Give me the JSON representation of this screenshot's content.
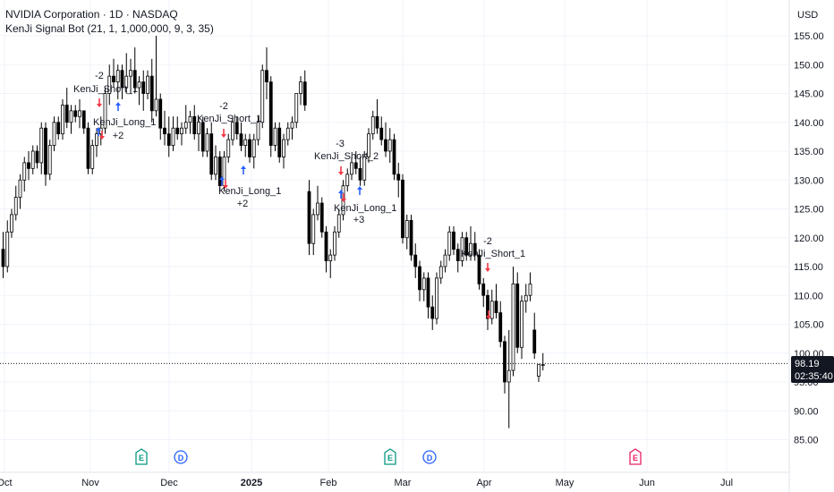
{
  "header": {
    "symbol_line": "NVIDIA Corporation · 1D · NASDAQ",
    "indicator_line": "KenJi Signal Bot (21, 1, 1,000,000, 9, 3, 35)"
  },
  "currency_label": "USD",
  "colors": {
    "candle": "#000000",
    "buy_arrow": "#2962ff",
    "sell_arrow": "#f23645",
    "grid": "#f0f3fa",
    "axis_text": "#131722",
    "earnings_badge": "#089981",
    "dividend_badge": "#2962ff",
    "future_earnings_badge": "#e91e63"
  },
  "current_price": {
    "value": "98.19",
    "countdown": "02:35:40"
  },
  "chart_data": {
    "type": "candlestick",
    "y_axis": {
      "ticks": [
        "155.00",
        "150.00",
        "145.00",
        "140.00",
        "135.00",
        "130.00",
        "125.00",
        "120.00",
        "115.00",
        "110.00",
        "105.00",
        "100.00",
        "95.00",
        "90.00",
        "85.00"
      ],
      "range": [
        82,
        158
      ]
    },
    "x_axis": {
      "labels": [
        "Oct",
        "Nov",
        "Dec",
        "2025",
        "Feb",
        "Mar",
        "Apr",
        "May",
        "Jun",
        "Jul"
      ],
      "bold_labels": [
        "2025"
      ]
    },
    "candles": [
      {
        "o": 118,
        "h": 121,
        "l": 113,
        "c": 115
      },
      {
        "o": 115,
        "h": 123,
        "l": 114,
        "c": 121
      },
      {
        "o": 121,
        "h": 125,
        "l": 120,
        "c": 124
      },
      {
        "o": 124,
        "h": 129,
        "l": 123,
        "c": 127
      },
      {
        "o": 127,
        "h": 131,
        "l": 125,
        "c": 130
      },
      {
        "o": 130,
        "h": 134,
        "l": 128,
        "c": 133
      },
      {
        "o": 133,
        "h": 135,
        "l": 130,
        "c": 132
      },
      {
        "o": 132,
        "h": 136,
        "l": 131,
        "c": 135
      },
      {
        "o": 135,
        "h": 136,
        "l": 132,
        "c": 133
      },
      {
        "o": 133,
        "h": 140,
        "l": 131,
        "c": 139
      },
      {
        "o": 139,
        "h": 140,
        "l": 129,
        "c": 131
      },
      {
        "o": 131,
        "h": 137,
        "l": 130,
        "c": 136
      },
      {
        "o": 136,
        "h": 141,
        "l": 135,
        "c": 140
      },
      {
        "o": 140,
        "h": 141,
        "l": 137,
        "c": 138
      },
      {
        "o": 138,
        "h": 144,
        "l": 137,
        "c": 143
      },
      {
        "o": 143,
        "h": 146,
        "l": 139,
        "c": 140
      },
      {
        "o": 140,
        "h": 143,
        "l": 138,
        "c": 142
      },
      {
        "o": 142,
        "h": 143,
        "l": 140,
        "c": 141
      },
      {
        "o": 141,
        "h": 144,
        "l": 139,
        "c": 142
      },
      {
        "o": 142,
        "h": 142,
        "l": 138,
        "c": 139
      },
      {
        "o": 139,
        "h": 140,
        "l": 131,
        "c": 132
      },
      {
        "o": 132,
        "h": 137,
        "l": 131,
        "c": 136
      },
      {
        "o": 136,
        "h": 139,
        "l": 134,
        "c": 138
      },
      {
        "o": 138,
        "h": 141,
        "l": 136,
        "c": 139
      },
      {
        "o": 139,
        "h": 146,
        "l": 138,
        "c": 145
      },
      {
        "o": 145,
        "h": 150,
        "l": 143,
        "c": 148
      },
      {
        "o": 148,
        "h": 151,
        "l": 146,
        "c": 147
      },
      {
        "o": 147,
        "h": 150,
        "l": 144,
        "c": 149
      },
      {
        "o": 149,
        "h": 150,
        "l": 144,
        "c": 146
      },
      {
        "o": 146,
        "h": 152,
        "l": 145,
        "c": 148
      },
      {
        "o": 148,
        "h": 151,
        "l": 145,
        "c": 149
      },
      {
        "o": 149,
        "h": 153,
        "l": 145,
        "c": 146
      },
      {
        "o": 146,
        "h": 148,
        "l": 143,
        "c": 147
      },
      {
        "o": 147,
        "h": 149,
        "l": 142,
        "c": 145
      },
      {
        "o": 145,
        "h": 149,
        "l": 144,
        "c": 148
      },
      {
        "o": 148,
        "h": 151,
        "l": 140,
        "c": 142
      },
      {
        "o": 142,
        "h": 155,
        "l": 141,
        "c": 144
      },
      {
        "o": 144,
        "h": 145,
        "l": 137,
        "c": 139
      },
      {
        "o": 139,
        "h": 142,
        "l": 136,
        "c": 138
      },
      {
        "o": 138,
        "h": 141,
        "l": 134,
        "c": 136
      },
      {
        "o": 136,
        "h": 141,
        "l": 135,
        "c": 139
      },
      {
        "o": 139,
        "h": 141,
        "l": 137,
        "c": 138
      },
      {
        "o": 138,
        "h": 140,
        "l": 136,
        "c": 139
      },
      {
        "o": 139,
        "h": 143,
        "l": 138,
        "c": 140
      },
      {
        "o": 140,
        "h": 142,
        "l": 138,
        "c": 141
      },
      {
        "o": 141,
        "h": 143,
        "l": 137,
        "c": 138
      },
      {
        "o": 138,
        "h": 141,
        "l": 135,
        "c": 140
      },
      {
        "o": 140,
        "h": 141,
        "l": 134,
        "c": 135
      },
      {
        "o": 135,
        "h": 139,
        "l": 134,
        "c": 138
      },
      {
        "o": 138,
        "h": 140,
        "l": 130,
        "c": 131
      },
      {
        "o": 131,
        "h": 136,
        "l": 130,
        "c": 134
      },
      {
        "o": 134,
        "h": 135,
        "l": 128,
        "c": 129
      },
      {
        "o": 129,
        "h": 135,
        "l": 128,
        "c": 134
      },
      {
        "o": 134,
        "h": 138,
        "l": 133,
        "c": 137
      },
      {
        "o": 137,
        "h": 141,
        "l": 136,
        "c": 140
      },
      {
        "o": 140,
        "h": 141,
        "l": 137,
        "c": 138
      },
      {
        "o": 138,
        "h": 140,
        "l": 135,
        "c": 136
      },
      {
        "o": 136,
        "h": 138,
        "l": 134,
        "c": 137
      },
      {
        "o": 137,
        "h": 138,
        "l": 133,
        "c": 134
      },
      {
        "o": 134,
        "h": 138,
        "l": 132,
        "c": 137
      },
      {
        "o": 137,
        "h": 141,
        "l": 136,
        "c": 140
      },
      {
        "o": 140,
        "h": 150,
        "l": 139,
        "c": 149
      },
      {
        "o": 149,
        "h": 153,
        "l": 144,
        "c": 147
      },
      {
        "o": 147,
        "h": 148,
        "l": 134,
        "c": 136
      },
      {
        "o": 136,
        "h": 140,
        "l": 135,
        "c": 139
      },
      {
        "o": 139,
        "h": 140,
        "l": 133,
        "c": 134
      },
      {
        "o": 134,
        "h": 138,
        "l": 132,
        "c": 137
      },
      {
        "o": 137,
        "h": 140,
        "l": 136,
        "c": 139
      },
      {
        "o": 139,
        "h": 141,
        "l": 137,
        "c": 140
      },
      {
        "o": 140,
        "h": 145,
        "l": 139,
        "c": 145
      },
      {
        "o": 145,
        "h": 148,
        "l": 143,
        "c": 147
      },
      {
        "o": 147,
        "h": 149,
        "l": 142,
        "c": 143
      },
      {
        "o": 128,
        "h": 130,
        "l": 117,
        "c": 119
      },
      {
        "o": 119,
        "h": 125,
        "l": 117,
        "c": 124
      },
      {
        "o": 124,
        "h": 129,
        "l": 123,
        "c": 126
      },
      {
        "o": 126,
        "h": 127,
        "l": 120,
        "c": 121
      },
      {
        "o": 121,
        "h": 122,
        "l": 114,
        "c": 116
      },
      {
        "o": 116,
        "h": 118,
        "l": 113,
        "c": 117
      },
      {
        "o": 117,
        "h": 122,
        "l": 116,
        "c": 121
      },
      {
        "o": 121,
        "h": 125,
        "l": 120,
        "c": 124
      },
      {
        "o": 124,
        "h": 130,
        "l": 123,
        "c": 129
      },
      {
        "o": 129,
        "h": 132,
        "l": 128,
        "c": 131
      },
      {
        "o": 131,
        "h": 134,
        "l": 130,
        "c": 133
      },
      {
        "o": 133,
        "h": 135,
        "l": 131,
        "c": 132
      },
      {
        "o": 132,
        "h": 134,
        "l": 129,
        "c": 130
      },
      {
        "o": 130,
        "h": 135,
        "l": 129,
        "c": 134
      },
      {
        "o": 134,
        "h": 139,
        "l": 133,
        "c": 138
      },
      {
        "o": 138,
        "h": 142,
        "l": 137,
        "c": 141
      },
      {
        "o": 141,
        "h": 144,
        "l": 138,
        "c": 139
      },
      {
        "o": 139,
        "h": 141,
        "l": 136,
        "c": 137
      },
      {
        "o": 137,
        "h": 140,
        "l": 134,
        "c": 135
      },
      {
        "o": 135,
        "h": 139,
        "l": 133,
        "c": 137
      },
      {
        "o": 137,
        "h": 138,
        "l": 130,
        "c": 131
      },
      {
        "o": 131,
        "h": 133,
        "l": 127,
        "c": 130
      },
      {
        "o": 130,
        "h": 131,
        "l": 119,
        "c": 120
      },
      {
        "o": 120,
        "h": 124,
        "l": 118,
        "c": 123
      },
      {
        "o": 123,
        "h": 124,
        "l": 116,
        "c": 117
      },
      {
        "o": 117,
        "h": 119,
        "l": 113,
        "c": 115
      },
      {
        "o": 115,
        "h": 116,
        "l": 109,
        "c": 111
      },
      {
        "o": 111,
        "h": 114,
        "l": 109,
        "c": 113
      },
      {
        "o": 113,
        "h": 114,
        "l": 106,
        "c": 108
      },
      {
        "o": 108,
        "h": 110,
        "l": 104,
        "c": 106
      },
      {
        "o": 106,
        "h": 114,
        "l": 105,
        "c": 113
      },
      {
        "o": 113,
        "h": 116,
        "l": 112,
        "c": 115
      },
      {
        "o": 115,
        "h": 118,
        "l": 114,
        "c": 117
      },
      {
        "o": 117,
        "h": 122,
        "l": 116,
        "c": 121
      },
      {
        "o": 121,
        "h": 122,
        "l": 117,
        "c": 118
      },
      {
        "o": 118,
        "h": 119,
        "l": 114,
        "c": 116
      },
      {
        "o": 116,
        "h": 121,
        "l": 115,
        "c": 120
      },
      {
        "o": 120,
        "h": 121,
        "l": 116,
        "c": 117
      },
      {
        "o": 117,
        "h": 122,
        "l": 116,
        "c": 119
      },
      {
        "o": 119,
        "h": 121,
        "l": 116,
        "c": 117
      },
      {
        "o": 117,
        "h": 118,
        "l": 111,
        "c": 112
      },
      {
        "o": 112,
        "h": 113,
        "l": 108,
        "c": 110
      },
      {
        "o": 110,
        "h": 111,
        "l": 104,
        "c": 106
      },
      {
        "o": 106,
        "h": 111,
        "l": 105,
        "c": 109
      },
      {
        "o": 109,
        "h": 112,
        "l": 106,
        "c": 107
      },
      {
        "o": 107,
        "h": 109,
        "l": 101,
        "c": 102
      },
      {
        "o": 102,
        "h": 103,
        "l": 93,
        "c": 95
      },
      {
        "o": 95,
        "h": 104,
        "l": 87,
        "c": 97
      },
      {
        "o": 97,
        "h": 115,
        "l": 96,
        "c": 112
      },
      {
        "o": 112,
        "h": 114,
        "l": 100,
        "c": 101
      },
      {
        "o": 101,
        "h": 110,
        "l": 99,
        "c": 109
      },
      {
        "o": 109,
        "h": 112,
        "l": 107,
        "c": 110
      },
      {
        "o": 110,
        "h": 114,
        "l": 109,
        "c": 112
      },
      {
        "o": 104,
        "h": 107,
        "l": 99,
        "c": 100
      },
      {
        "o": 96,
        "h": 98,
        "l": 95,
        "c": 98
      },
      {
        "o": 98,
        "h": 100,
        "l": 97,
        "c": 98
      }
    ],
    "signals": [
      {
        "kind": "short",
        "label": "KenJi_Short_1",
        "value": "-2"
      },
      {
        "kind": "long",
        "label": "KenJi_Long_1",
        "value": "+2"
      },
      {
        "kind": "short",
        "label": "KenJi_Short_1",
        "value": "-2"
      },
      {
        "kind": "long",
        "label": "KenJi_Long_1",
        "value": "+2"
      },
      {
        "kind": "short",
        "label": "KenJi_Short_2",
        "value": "-3"
      },
      {
        "kind": "long",
        "label": "KenJi_Long_1",
        "value": "+3"
      },
      {
        "kind": "short",
        "label": "KenJi_Short_1",
        "value": "-2"
      }
    ],
    "event_badges": [
      {
        "letter": "E",
        "type": "earnings"
      },
      {
        "letter": "D",
        "type": "dividend"
      },
      {
        "letter": "E",
        "type": "earnings"
      },
      {
        "letter": "D",
        "type": "dividend"
      },
      {
        "letter": "E",
        "type": "future_earnings"
      }
    ]
  }
}
